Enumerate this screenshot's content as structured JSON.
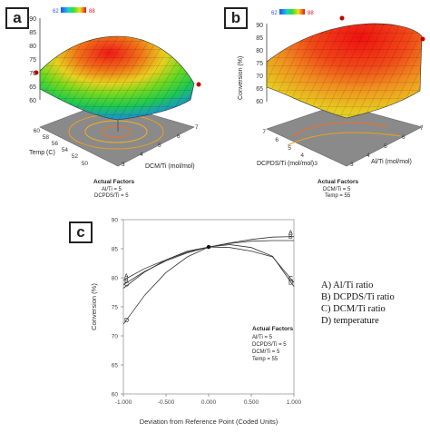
{
  "panel_a": {
    "label": "a",
    "colorbar": {
      "min": "62",
      "max": "88"
    },
    "z_ticks": [
      "90",
      "85",
      "80",
      "75",
      "70",
      "65",
      "60"
    ],
    "y_axis": {
      "label": "Temp (C)",
      "ticks": [
        "60",
        "58",
        "56",
        "54",
        "52",
        "50"
      ]
    },
    "x_axis": {
      "label": "DCM/Ti (mol/mol)",
      "ticks": [
        "3",
        "4",
        "5",
        "6",
        "7"
      ]
    },
    "actual_factors": {
      "title": "Actual Factors",
      "lines": [
        "Al/Ti = 5",
        "DCPDS/Ti = 5"
      ]
    }
  },
  "panel_b": {
    "label": "b",
    "colorbar": {
      "min": "62",
      "max": "88"
    },
    "z_label": "Conversion (%)",
    "z_ticks": [
      "90",
      "85",
      "80",
      "75",
      "70",
      "65",
      "60"
    ],
    "y_axis": {
      "label": "DCPDS/Ti (mol/mol)",
      "ticks": [
        "7",
        "6",
        "5",
        "4",
        "3"
      ]
    },
    "x_axis": {
      "label": "Al/Ti (mol/mol)",
      "ticks": [
        "3",
        "4",
        "5",
        "6",
        "7"
      ]
    },
    "actual_factors": {
      "title": "Actual Factors",
      "lines": [
        "DCM/Ti = 5",
        "Temp = 55"
      ]
    }
  },
  "panel_c": {
    "label": "c",
    "actual_factors": {
      "title": "Actual Factors",
      "lines": [
        "Al/Ti = 5",
        "DCPDS/Ti = 5",
        "DCM/Ti = 5",
        "Temp = 55"
      ]
    },
    "legend": [
      "A) Al/Ti ratio",
      "B) DCPDS/Ti ratio",
      "C) DCM/Ti ratio",
      "D) temperature"
    ]
  },
  "chart_data": [
    {
      "type": "surface",
      "panel": "a",
      "x_label": "DCM/Ti (mol/mol)",
      "y_label": "Temp (C)",
      "x_range": [
        3,
        7
      ],
      "y_range": [
        50,
        60
      ],
      "z_range": [
        60,
        90
      ],
      "colorbar_range": [
        62,
        88
      ]
    },
    {
      "type": "surface",
      "panel": "b",
      "x_label": "Al/Ti (mol/mol)",
      "y_label": "DCPDS/Ti (mol/mol)",
      "z_label": "Conversion (%)",
      "x_range": [
        3,
        7
      ],
      "y_range": [
        3,
        7
      ],
      "z_range": [
        60,
        90
      ],
      "colorbar_range": [
        62,
        88
      ]
    },
    {
      "type": "line",
      "panel": "c",
      "xlabel": "Deviation from Reference Point (Coded Units)",
      "ylabel": "Conversion (%)",
      "xlim": [
        -1,
        1
      ],
      "ylim": [
        60,
        90
      ],
      "x_ticks": [
        "-1.000",
        "-0.500",
        "0.000",
        "0.500",
        "1.000"
      ],
      "y_ticks": [
        "60",
        "65",
        "70",
        "75",
        "80",
        "85",
        "90"
      ],
      "x": [
        -1.0,
        -0.75,
        -0.5,
        -0.25,
        0.0,
        0.25,
        0.5,
        0.75,
        1.0
      ],
      "series": [
        {
          "name": "A",
          "values": [
            79.6,
            81.6,
            83.1,
            84.4,
            85.3,
            86.0,
            86.6,
            87.0,
            87.1
          ]
        },
        {
          "name": "B",
          "values": [
            78.8,
            81.1,
            82.9,
            84.3,
            85.3,
            85.9,
            86.3,
            86.4,
            86.4
          ]
        },
        {
          "name": "C",
          "values": [
            78.2,
            81.0,
            83.1,
            84.6,
            85.3,
            85.2,
            84.6,
            83.6,
            79.2
          ]
        },
        {
          "name": "D",
          "values": [
            72.0,
            77.0,
            80.9,
            83.6,
            85.3,
            85.7,
            85.2,
            83.7,
            78.5
          ]
        }
      ]
    }
  ]
}
